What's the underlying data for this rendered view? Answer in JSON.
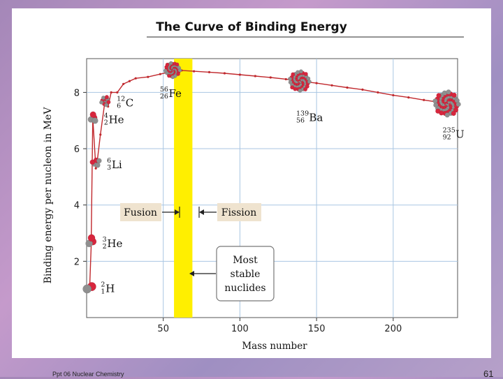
{
  "slide": {
    "footer": "Ppt 06 Nuclear Chemistry",
    "page_number": "61"
  },
  "chart_data": {
    "type": "line",
    "title": "The Curve of Binding Energy",
    "xlabel": "Mass number",
    "ylabel": "Binding energy per nucleon in MeV",
    "xlim": [
      0,
      242
    ],
    "ylim": [
      0,
      9.2
    ],
    "xticks": [
      50,
      100,
      150,
      200
    ],
    "yticks": [
      2,
      4,
      6,
      8
    ],
    "grid": true,
    "series": [
      {
        "x": [
          2,
          3,
          3,
          4,
          6,
          7,
          9,
          12,
          14,
          16,
          20,
          24,
          28,
          32,
          40,
          48,
          56,
          62,
          70,
          80,
          90,
          100,
          110,
          120,
          130,
          139,
          150,
          160,
          170,
          180,
          190,
          200,
          210,
          220,
          230,
          238
        ],
        "y": [
          1.1,
          2.6,
          2.8,
          7.1,
          5.3,
          5.6,
          6.5,
          7.7,
          7.5,
          8.0,
          8.0,
          8.3,
          8.4,
          8.5,
          8.55,
          8.65,
          8.75,
          8.78,
          8.75,
          8.72,
          8.68,
          8.63,
          8.58,
          8.53,
          8.47,
          8.4,
          8.33,
          8.25,
          8.17,
          8.1,
          8.0,
          7.9,
          7.82,
          7.73,
          7.65,
          7.57
        ]
      }
    ],
    "highlight_band": {
      "x_from": 57,
      "x_to": 69,
      "color": "#ffef00"
    },
    "nuclides": [
      {
        "sup": "2",
        "sub": "1",
        "symbol": "H",
        "x": 2,
        "y": 1.1
      },
      {
        "sup": "3",
        "sub": "2",
        "symbol": "He",
        "x": 3,
        "y": 2.7
      },
      {
        "sup": "4",
        "sub": "2",
        "symbol": "He",
        "x": 4,
        "y": 7.1
      },
      {
        "sup": "6",
        "sub": "3",
        "symbol": "Li",
        "x": 6,
        "y": 5.5
      },
      {
        "sup": "12",
        "sub": "6",
        "symbol": "C",
        "x": 12,
        "y": 7.7
      },
      {
        "sup": "56",
        "sub": "26",
        "symbol": "Fe",
        "x": 56,
        "y": 8.8
      },
      {
        "sup": "139",
        "sub": "56",
        "symbol": "Ba",
        "x": 139,
        "y": 8.4
      },
      {
        "sup": "235",
        "sub": "92",
        "symbol": "U",
        "x": 235,
        "y": 7.6
      }
    ],
    "annotations": {
      "fusion": "Fusion",
      "fission": "Fission",
      "most_stable": [
        "Most",
        "stable",
        "nuclides"
      ]
    },
    "colors": {
      "curve": "#c0282d",
      "grid": "#a9c6e2",
      "band": "#ffef00",
      "proton": "#d7263d",
      "neutron": "#8f8f8f",
      "title_rule": "#555555"
    }
  }
}
